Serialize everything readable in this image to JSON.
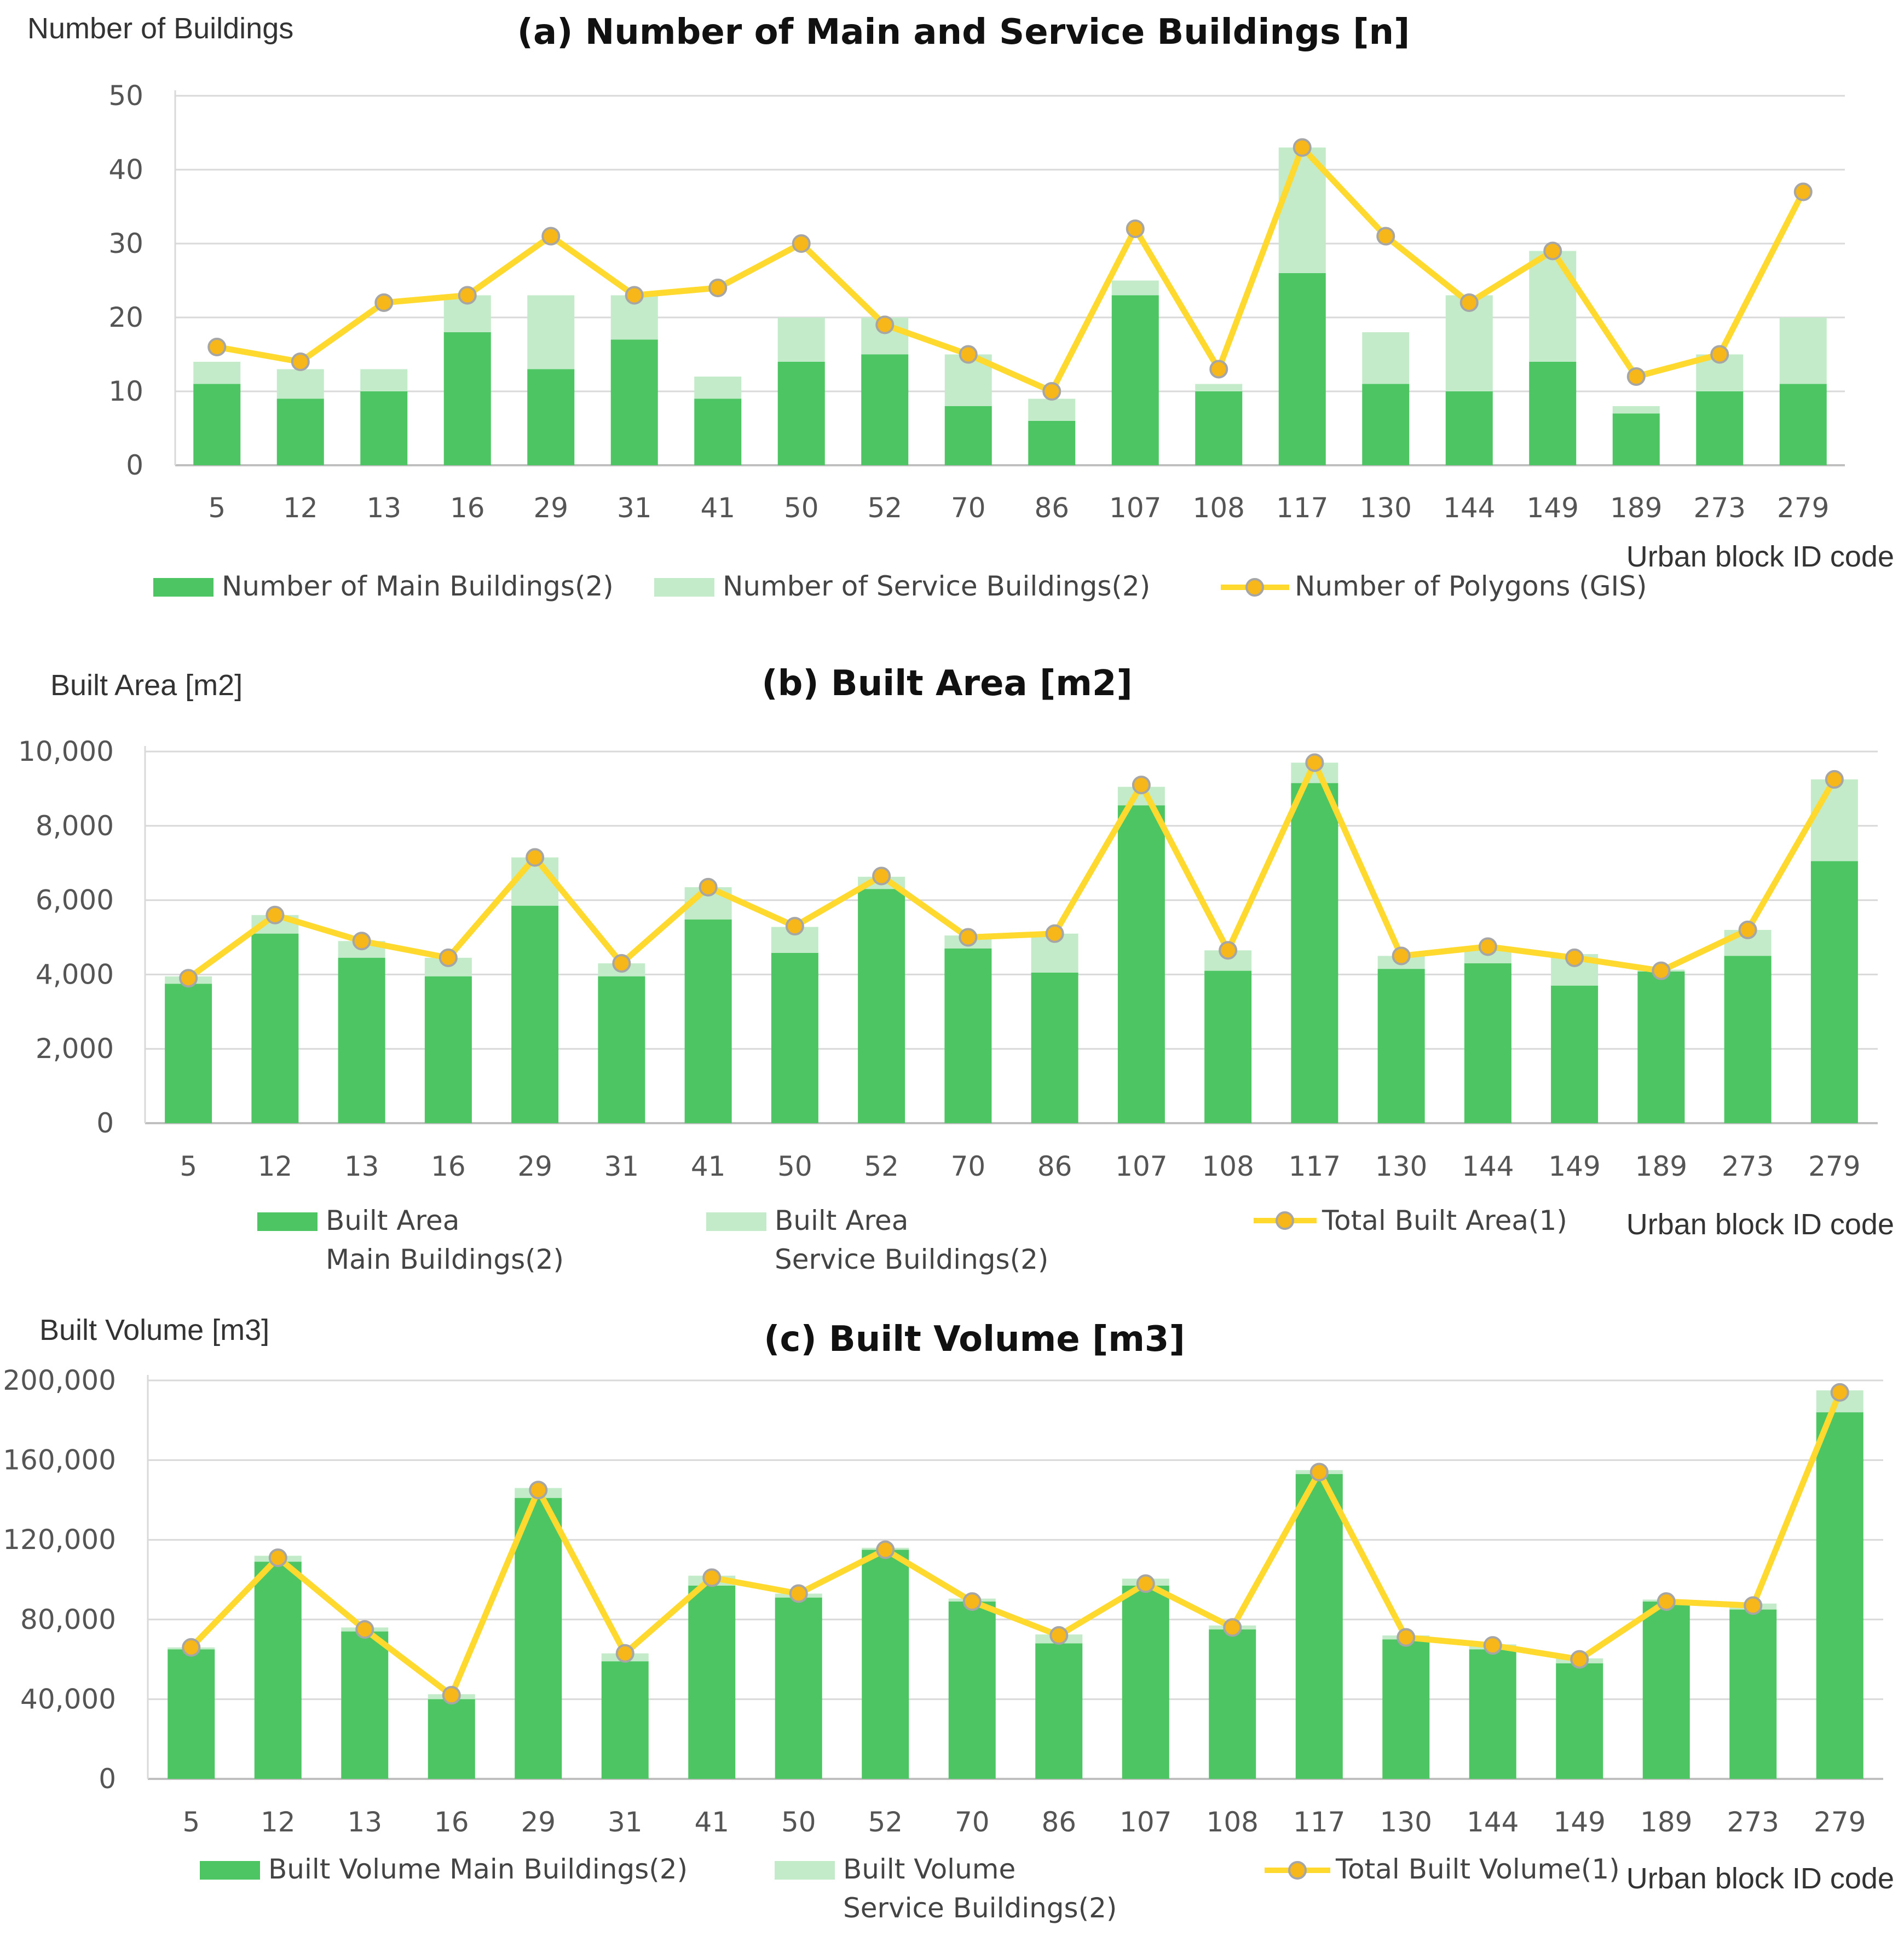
{
  "colors": {
    "main": "#4cc562",
    "service": "#c3ebc9",
    "line": "#ffd92e",
    "marker_fill": "#f7b718",
    "marker_stroke": "#a6a6a6"
  },
  "chart_data": [
    {
      "type": "bar",
      "title": "(a) Number of Main and Service Buildings [n]",
      "ylabel": "Number of Buildings",
      "xlabel": "Urban block ID code",
      "ylim": [
        0,
        50
      ],
      "yticks": [
        "0",
        "10",
        "20",
        "30",
        "40",
        "50"
      ],
      "categories": [
        "5",
        "12",
        "13",
        "16",
        "29",
        "31",
        "41",
        "50",
        "52",
        "70",
        "86",
        "107",
        "108",
        "117",
        "130",
        "144",
        "149",
        "189",
        "273",
        "279"
      ],
      "series": [
        {
          "name": "Number of Main Buildings(2)",
          "kind": "stacked-bar",
          "values": [
            11,
            9,
            10,
            18,
            13,
            17,
            9,
            14,
            15,
            8,
            6,
            23,
            10,
            26,
            11,
            10,
            14,
            7,
            10,
            11
          ]
        },
        {
          "name": "Number of Service Buildings(2)",
          "kind": "stacked-bar",
          "values": [
            3,
            4,
            3,
            5,
            10,
            6,
            3,
            6,
            5,
            7,
            3,
            2,
            1,
            17,
            7,
            13,
            15,
            1,
            5,
            9
          ]
        },
        {
          "name": "Number of Polygons (GIS)",
          "kind": "line",
          "values": [
            16,
            14,
            22,
            23,
            31,
            23,
            24,
            30,
            19,
            15,
            10,
            32,
            13,
            43,
            31,
            22,
            29,
            12,
            15,
            37
          ]
        }
      ],
      "legend": {
        "main": "Number of Main Buildings(2)",
        "service": "Number of Service Buildings(2)",
        "line": "Number of Polygons (GIS)"
      }
    },
    {
      "type": "bar",
      "title": "(b) Built Area [m2]",
      "ylabel": "Built Area [m2]",
      "xlabel": "Urban block ID code",
      "ylim": [
        0,
        10000
      ],
      "yticks": [
        "0",
        "2,000",
        "4,000",
        "6,000",
        "8,000",
        "10,000"
      ],
      "categories": [
        "5",
        "12",
        "13",
        "16",
        "29",
        "31",
        "41",
        "50",
        "52",
        "70",
        "86",
        "107",
        "108",
        "117",
        "130",
        "144",
        "149",
        "189",
        "273",
        "279"
      ],
      "series": [
        {
          "name": "Built Area Main Buildings(2)",
          "kind": "stacked-bar",
          "values": [
            3750,
            5100,
            4450,
            3950,
            5850,
            3950,
            5480,
            4580,
            6300,
            4700,
            4050,
            8550,
            4100,
            9150,
            4150,
            4300,
            3700,
            4080,
            4500,
            7050
          ]
        },
        {
          "name": "Built Area Service Buildings(2)",
          "kind": "stacked-bar",
          "values": [
            200,
            500,
            450,
            500,
            1300,
            350,
            870,
            700,
            330,
            350,
            1050,
            500,
            550,
            550,
            350,
            450,
            850,
            50,
            700,
            2200
          ]
        },
        {
          "name": "Total Built Area(1)",
          "kind": "line",
          "values": [
            3900,
            5600,
            4900,
            4450,
            7150,
            4300,
            6350,
            5300,
            6650,
            5000,
            5100,
            9100,
            4650,
            9700,
            4500,
            4750,
            4450,
            4100,
            5200,
            9250
          ]
        }
      ],
      "legend": {
        "main_line1": "Built Area",
        "main_line2": "Main Buildings(2)",
        "service_line1": "Built Area",
        "service_line2": "Service Buildings(2)",
        "line": "Total Built Area(1)"
      }
    },
    {
      "type": "bar",
      "title": "(c) Built Volume [m3]",
      "ylabel": "Built Volume [m3]",
      "xlabel": "Urban block ID code",
      "ylim": [
        0,
        200000
      ],
      "yticks": [
        "0",
        "40,000",
        "80,000",
        "120,000",
        "160,000",
        "200,000"
      ],
      "categories": [
        "5",
        "12",
        "13",
        "16",
        "29",
        "31",
        "41",
        "50",
        "52",
        "70",
        "86",
        "107",
        "108",
        "117",
        "130",
        "144",
        "149",
        "189",
        "273",
        "279"
      ],
      "series": [
        {
          "name": "Built Volume Main Buildings(2)",
          "kind": "stacked-bar",
          "values": [
            65000,
            109000,
            74000,
            40000,
            141000,
            59000,
            97000,
            91000,
            115000,
            89000,
            68000,
            97000,
            75000,
            153000,
            70000,
            65000,
            58000,
            89000,
            85000,
            184000
          ]
        },
        {
          "name": "Built Volume Service Buildings(2)",
          "kind": "stacked-bar",
          "values": [
            1000,
            3000,
            2000,
            2500,
            5000,
            4000,
            5000,
            2000,
            1000,
            1500,
            4500,
            3500,
            2000,
            2000,
            2000,
            2500,
            2500,
            1000,
            3000,
            11000
          ]
        },
        {
          "name": "Total Built Volume(1)",
          "kind": "line",
          "values": [
            66000,
            111000,
            75000,
            42000,
            145000,
            63000,
            101000,
            93000,
            115000,
            89000,
            72000,
            98000,
            76000,
            154000,
            71000,
            67000,
            60000,
            89000,
            87000,
            194000
          ]
        }
      ],
      "legend": {
        "main": "Built Volume Main Buildings(2)",
        "service_line1": "Built Volume",
        "service_line2": "Service Buildings(2)",
        "line": "Total Built Volume(1)"
      }
    }
  ]
}
